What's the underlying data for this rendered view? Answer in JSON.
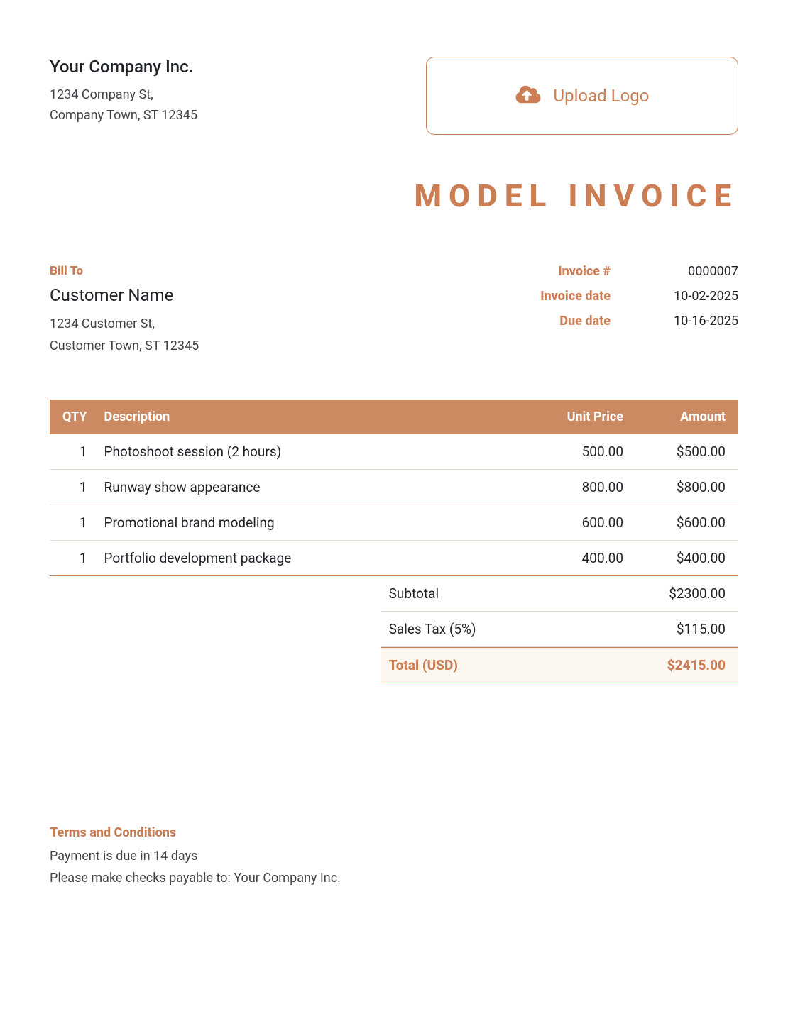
{
  "colors": {
    "accent": "#cb7d53",
    "header_bg": "#cb8a62",
    "text": "#1f2328",
    "muted": "#404448",
    "row_border": "#e6d9cf",
    "total_bg": "#fdf7f2",
    "background": "#ffffff"
  },
  "company": {
    "name": "Your Company Inc.",
    "addr1": "1234 Company St,",
    "addr2": "Company Town, ST 12345"
  },
  "upload": {
    "label": "Upload Logo",
    "icon": "cloud-upload-icon"
  },
  "title": "MODEL INVOICE",
  "bill_to": {
    "section_label": "Bill To",
    "name": "Customer Name",
    "addr1": "1234 Customer St,",
    "addr2": "Customer Town, ST 12345"
  },
  "meta": {
    "invoice_num_label": "Invoice #",
    "invoice_num": "0000007",
    "invoice_date_label": "Invoice date",
    "invoice_date": "10-02-2025",
    "due_date_label": "Due date",
    "due_date": "10-16-2025"
  },
  "table": {
    "columns": {
      "qty": "QTY",
      "desc": "Description",
      "price": "Unit Price",
      "amount": "Amount"
    },
    "rows": [
      {
        "qty": "1",
        "desc": "Photoshoot session (2 hours)",
        "price": "500.00",
        "amount": "$500.00"
      },
      {
        "qty": "1",
        "desc": "Runway show appearance",
        "price": "800.00",
        "amount": "$800.00"
      },
      {
        "qty": "1",
        "desc": "Promotional brand modeling",
        "price": "600.00",
        "amount": "$600.00"
      },
      {
        "qty": "1",
        "desc": "Portfolio development package",
        "price": "400.00",
        "amount": "$400.00"
      }
    ]
  },
  "totals": {
    "subtotal_label": "Subtotal",
    "subtotal": "$2300.00",
    "tax_label": "Sales Tax (5%)",
    "tax": "$115.00",
    "total_label": "Total (USD)",
    "total": "$2415.00"
  },
  "terms": {
    "label": "Terms and Conditions",
    "line1": "Payment is due in 14 days",
    "line2": "Please make checks payable to: Your Company Inc."
  }
}
